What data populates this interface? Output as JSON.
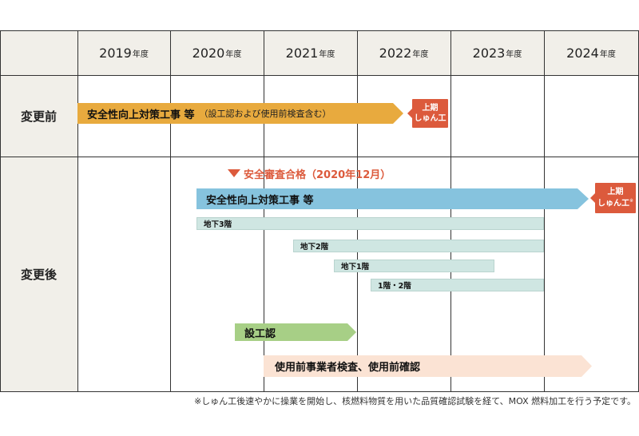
{
  "header": {
    "years": [
      {
        "year": "2019",
        "suffix": "年度"
      },
      {
        "year": "2020",
        "suffix": "年度"
      },
      {
        "year": "2021",
        "suffix": "年度"
      },
      {
        "year": "2022",
        "suffix": "年度"
      },
      {
        "year": "2023",
        "suffix": "年度"
      },
      {
        "year": "2024",
        "suffix": "年度"
      }
    ]
  },
  "rows": {
    "before_label": "変更前",
    "after_label": "変更後"
  },
  "before": {
    "bar_title": "安全性向上対策工事 等",
    "bar_sub": "（設工認および使用前検査含む）",
    "badge_line1": "上期",
    "badge_line2": "しゅん工"
  },
  "after": {
    "milestone": "安全審査合格（2020年12月）",
    "main_bar": "安全性向上対策工事 等",
    "badge_line1": "上期",
    "badge_line2": "しゅん工",
    "badge_mark": "※",
    "floors": [
      "地下3階",
      "地下2階",
      "地下1階",
      "1階・2階"
    ],
    "design_approval": "設工認",
    "inspection": "使用前事業者検査、使用前確認"
  },
  "footnote": "※しゅん工後速やかに操業を開始し、核燃料物質を用いた品質確認試験を経て、MOX 燃料加工を行う予定です。",
  "colors": {
    "orange": "#e8aa3e",
    "blue": "#86c3de",
    "teal": "#cfe6e2",
    "green": "#a7cf86",
    "peach": "#fbe3d4",
    "badge": "#dc5a3c",
    "milestone": "#dc5a3c",
    "header_bg": "#f1efe9"
  }
}
